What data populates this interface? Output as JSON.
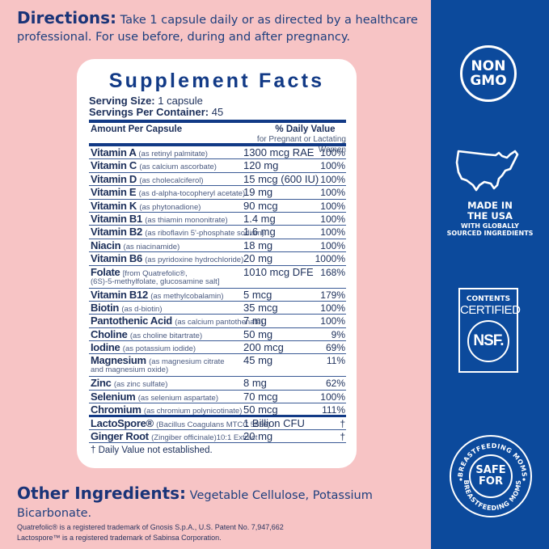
{
  "directions": {
    "label": "Directions:",
    "text": " Take 1 capsule daily or as directed by a healthcare professional. For use before, during and after pregnancy."
  },
  "supplement_facts": {
    "title": "Supplement Facts",
    "serving_size_label": "Serving Size:",
    "serving_size_value": " 1 capsule",
    "servings_per_container_label": "Servings Per Container:",
    "servings_per_container_value": " 45",
    "header_amount": "Amount Per Capsule",
    "header_dv": "% Daily Value",
    "header_dv_sub": "for Pregnant or Lactating Women",
    "rows": [
      {
        "name": "Vitamin A",
        "source": "(as retinyl palmitate)",
        "amount": "1300 mcg RAE",
        "dv": "100%"
      },
      {
        "name": "Vitamin C",
        "source": "(as calcium ascorbate)",
        "amount": "120 mg",
        "dv": "100%"
      },
      {
        "name": "Vitamin D",
        "source": "(as cholecalciferol)",
        "amount": "15 mcg (600 IU)",
        "dv": "100%"
      },
      {
        "name": "Vitamin E",
        "source": "(as d-alpha-tocopheryl acetate)",
        "amount": "19 mg",
        "dv": "100%"
      },
      {
        "name": "Vitamin K",
        "source": "(as phytonadione)",
        "amount": "90 mcg",
        "dv": "100%"
      },
      {
        "name": "Vitamin B1",
        "source": "(as thiamin mononitrate)",
        "amount": "1.4 mg",
        "dv": "100%"
      },
      {
        "name": "Vitamin B2",
        "source": "(as riboflavin 5'-phosphate sodium)",
        "amount": "1.6 mg",
        "dv": "100%"
      },
      {
        "name": "Niacin",
        "source": "(as niacinamide)",
        "amount": "18 mg",
        "dv": "100%"
      },
      {
        "name": "Vitamin B6",
        "source": "(as pyridoxine hydrochloride)",
        "amount": "20 mg",
        "dv": "1000%"
      },
      {
        "name": "Folate",
        "source": "[from Quatrefolic®,",
        "source_line2": "(6S)-5-methylfolate, glucosamine salt]",
        "amount": "1010 mcg DFE",
        "dv": "168%"
      },
      {
        "name": "Vitamin B12",
        "source": "(as methylcobalamin)",
        "amount": "5 mcg",
        "dv": "179%"
      },
      {
        "name": "Biotin",
        "source": "(as d-biotin)",
        "amount": "35 mcg",
        "dv": "100%"
      },
      {
        "name": "Pantothenic Acid",
        "source": "(as calcium pantothenate)",
        "amount": "7 mg",
        "dv": "100%"
      },
      {
        "name": "Choline",
        "source": "(as choline bitartrate)",
        "amount": "50 mg",
        "dv": "9%"
      },
      {
        "name": "Iodine",
        "source": "(as potassium iodide)",
        "amount": "200 mcg",
        "dv": "69%"
      },
      {
        "name": "Magnesium",
        "source": "(as magnesium citrate",
        "source_line2": "and magnesium oxide)",
        "amount": "45 mg",
        "dv": "11%"
      },
      {
        "name": "Zinc",
        "source": "(as zinc sulfate)",
        "amount": "8 mg",
        "dv": "62%"
      },
      {
        "name": "Selenium",
        "source": "(as selenium aspartate)",
        "amount": "70 mcg",
        "dv": "100%"
      },
      {
        "name": "Chromium",
        "source": "(as chromium polynicotinate)",
        "amount": "50 mcg",
        "dv": "111%"
      },
      {
        "name": "LactoSpore®",
        "source": "(Bacillus Coagulans MTCC 5856)",
        "amount": "1 Billion CFU",
        "dv": "†"
      },
      {
        "name": "Ginger Root",
        "source": "(Zingiber officinale)10:1 Extract",
        "amount": "20 mg",
        "dv": "†"
      }
    ],
    "footnote": "† Daily Value not established."
  },
  "other_ingredients": {
    "label": "Other Ingredients:",
    "text": " Vegetable Cellulose, Potassium Bicarbonate."
  },
  "trademarks": [
    "Quatrefolic® is a registered trademark of Gnosis S.p.A., U.S. Patent No. 7,947,662",
    "Lactospore™ is a registered trademark of Sabinsa Corporation."
  ],
  "badges": {
    "non_gmo_line1": "NON",
    "non_gmo_line2": "GMO",
    "made_line1": "MADE IN",
    "made_line2": "THE USA",
    "made_sub1": "WITH GLOBALLY",
    "made_sub2": "SOURCED INGREDIENTS",
    "nsf_line1": "CONTENTS",
    "nsf_line2": "CERTIFIED",
    "nsf_mark": "NSF.",
    "bf_line1": "SAFE",
    "bf_line2": "FOR",
    "bf_ring": "BREASTFEEDING MOMS"
  },
  "colors": {
    "background_pink": "#f7c4c5",
    "panel_blue": "#0c4a9c",
    "text_navy": "#1a3478"
  }
}
